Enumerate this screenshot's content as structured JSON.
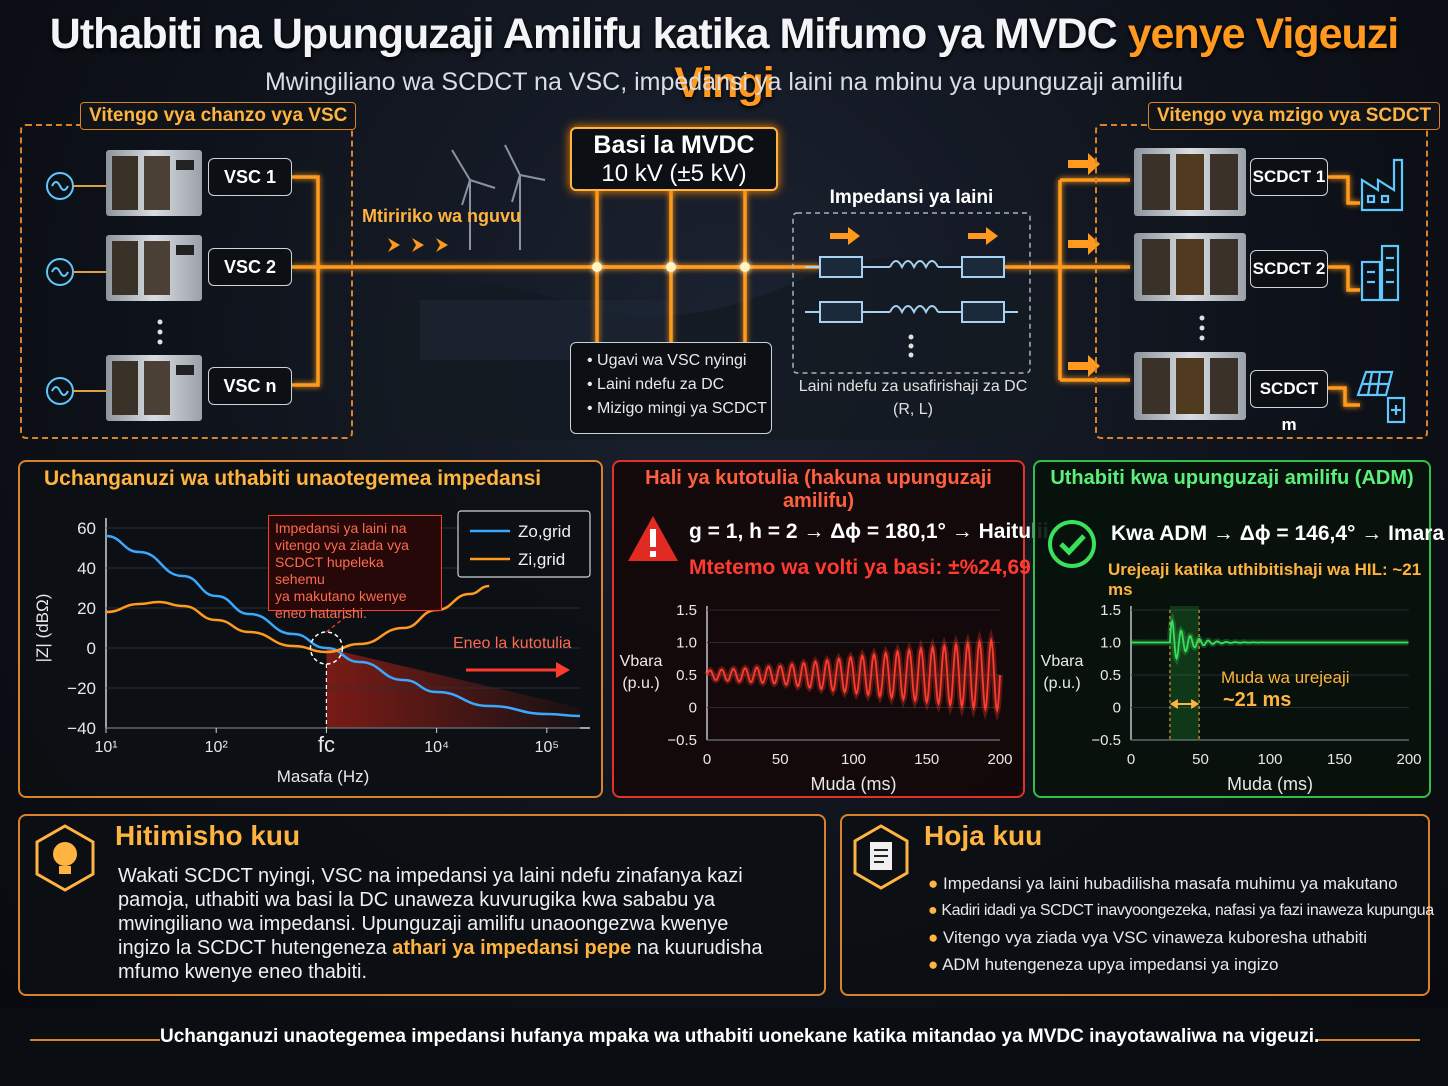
{
  "header": {
    "title_white": "Uthabiti na Upunguzaji Amilifu katika Mifumo ya MVDC",
    "title_orange": "yenye Vigeuzi Vingi",
    "subtitle": "Mwingiliano wa SCDCT na VSC, impedansi ya laini na mbinu ya upunguzaji amilifu"
  },
  "topology": {
    "source_box_label": "Vitengo vya chanzo vya VSC",
    "load_box_label": "Vitengo vya mzigo vya SCDCT",
    "vsc_labels": [
      "VSC 1",
      "VSC 2",
      "VSC n"
    ],
    "scdct_labels": [
      "SCDCT 1",
      "SCDCT 2",
      "SCDCT m"
    ],
    "flow_label": "Mtiririko wa nguvu",
    "bus_title": "Basi la MVDC",
    "bus_voltage": "10 kV (±5 kV)",
    "bus_bullets": [
      "• Ugavi wa VSC nyingi",
      "• Laini ndefu za DC",
      "• Mizigo mingi ya SCDCT"
    ],
    "line_title": "Impedansi ya laini",
    "line_caption_1": "Laini ndefu za usafirishaji za DC",
    "line_caption_2": "(R, L)"
  },
  "impedance_panel": {
    "title": "Uchanganuzi wa uthabiti unaotegemea impedansi",
    "annotation": [
      "Impedansi ya laini na",
      "vitengo vya ziada vya",
      "SCDCT hupeleka sehemu",
      "ya makutano kwenye",
      "eneo hatarishi."
    ],
    "unstable_region": "Eneo la kutotulia",
    "colors": {
      "grid_out": "#3aa8ff",
      "grid_in": "#ff9a1f"
    }
  },
  "unstable_panel": {
    "title": "Hali ya kutotulia (hakuna upunguzaji amilifu)",
    "line1": "g = 1, h = 2 → Δϕ = 180,1° → Haitulii",
    "line2": "Mtetemo wa volti ya basi: ±%24,69",
    "color": "#ff3b2f"
  },
  "stable_panel": {
    "title": "Uthabiti kwa upunguzaji amilifu (ADM)",
    "line1": "Kwa ADM → Δϕ = 146,4° → Imara",
    "line2": "Urejeaji katika uthibitishaji wa HIL: ~21 ms",
    "recovery_1": "Muda wa urejeaji",
    "recovery_2": "~21 ms",
    "color": "#39e05a"
  },
  "chart_data": [
    {
      "type": "line",
      "title": "",
      "xlabel": "Masafa (Hz)",
      "ylabel": "|Z| (dBΩ)",
      "x_scale": "log",
      "xlim": [
        10,
        200000
      ],
      "ylim": [
        -40,
        60
      ],
      "x_ticks": [
        "10¹",
        "10²",
        "fc",
        "10⁴",
        "10⁵"
      ],
      "y_ticks": [
        "60",
        "40",
        "20",
        "0",
        "−20",
        "−40"
      ],
      "legend": "top-right",
      "series": [
        {
          "name": "Zo,grid",
          "x": [
            10,
            20,
            50,
            100,
            200,
            500,
            1000,
            2000,
            5000,
            10000,
            30000,
            100000,
            200000
          ],
          "values": [
            56,
            48,
            36,
            26,
            17,
            7,
            0,
            -7,
            -16,
            -22,
            -29,
            -33,
            -34
          ]
        },
        {
          "name": "Zi,grid",
          "x": [
            10,
            20,
            30,
            50,
            100,
            200,
            500,
            1000,
            2000,
            5000,
            10000,
            20000,
            30000
          ],
          "values": [
            18,
            22,
            23,
            21,
            14,
            8,
            1,
            -2,
            2,
            10,
            19,
            27,
            31
          ]
        }
      ],
      "annotations": [
        "fc"
      ]
    },
    {
      "type": "line",
      "title": "",
      "xlabel": "Muda (ms)",
      "ylabel": "Vbara (p.u.)",
      "xlim": [
        0,
        200
      ],
      "ylim": [
        -0.5,
        1.5
      ],
      "x_ticks": [
        "0",
        "50",
        "100",
        "150",
        "200"
      ],
      "y_ticks": [
        "1.5",
        "1.0",
        "0.5",
        "0",
        "−0.5"
      ],
      "series": [
        {
          "name": "",
          "x": [
            0,
            50,
            100,
            150,
            200
          ],
          "amplitude": [
            0.07,
            0.14,
            0.28,
            0.42,
            0.55
          ],
          "center": 0.5,
          "period_ms": 8
        }
      ]
    },
    {
      "type": "line",
      "title": "",
      "xlabel": "Muda (ms)",
      "ylabel": "Vbara (p.u.)",
      "xlim": [
        0,
        200
      ],
      "ylim": [
        -0.5,
        1.5
      ],
      "x_ticks": [
        "0",
        "50",
        "100",
        "150",
        "200"
      ],
      "y_ticks": [
        "1.5",
        "1.0",
        "0.5",
        "0",
        "−0.5"
      ],
      "series": [
        {
          "name": "",
          "x": [
            0,
            28,
            30,
            35,
            40,
            50,
            70,
            100,
            200
          ],
          "values": [
            1.0,
            1.0,
            1.32,
            0.72,
            1.22,
            0.9,
            1.04,
            1.0,
            1.0
          ]
        }
      ],
      "recovery_window_ms": [
        28,
        49
      ]
    }
  ],
  "conclusion": {
    "title": "Hitimisho kuu",
    "text_lines": [
      "Wakati SCDCT nyingi, VSC na impedansi ya laini ndefu zinafanya kazi",
      "pamoja, uthabiti wa basi la DC unaweza kuvurugika kwa sababu ya",
      "mwingiliano wa impedansi. Upunguzaji amilifu unaoongezwa kwenye"
    ],
    "text_line4_a": "ingizo la SCDCT hutengeneza ",
    "text_line4_b": "athari ya impedansi pepe",
    "text_line4_c": " na kuurudisha",
    "text_line5": "mfumo kwenye eneo thabiti."
  },
  "points": {
    "title": "Hoja kuu",
    "items": [
      "Impedansi ya laini hubadilisha masafa muhimu ya makutano",
      "Kadiri idadi ya SCDCT inavyoongezeka, nafasi ya fazi inaweza kupungua",
      "Vitengo vya ziada vya VSC vinaweza kuboresha uthabiti",
      "ADM hutengeneza upya impedansi ya ingizo"
    ]
  },
  "footer": "Uchanganuzi unaotegemea impedansi hufanya mpaka wa uthabiti uonekane katika mitandao ya MVDC inayotawaliwa na vigeuzi."
}
